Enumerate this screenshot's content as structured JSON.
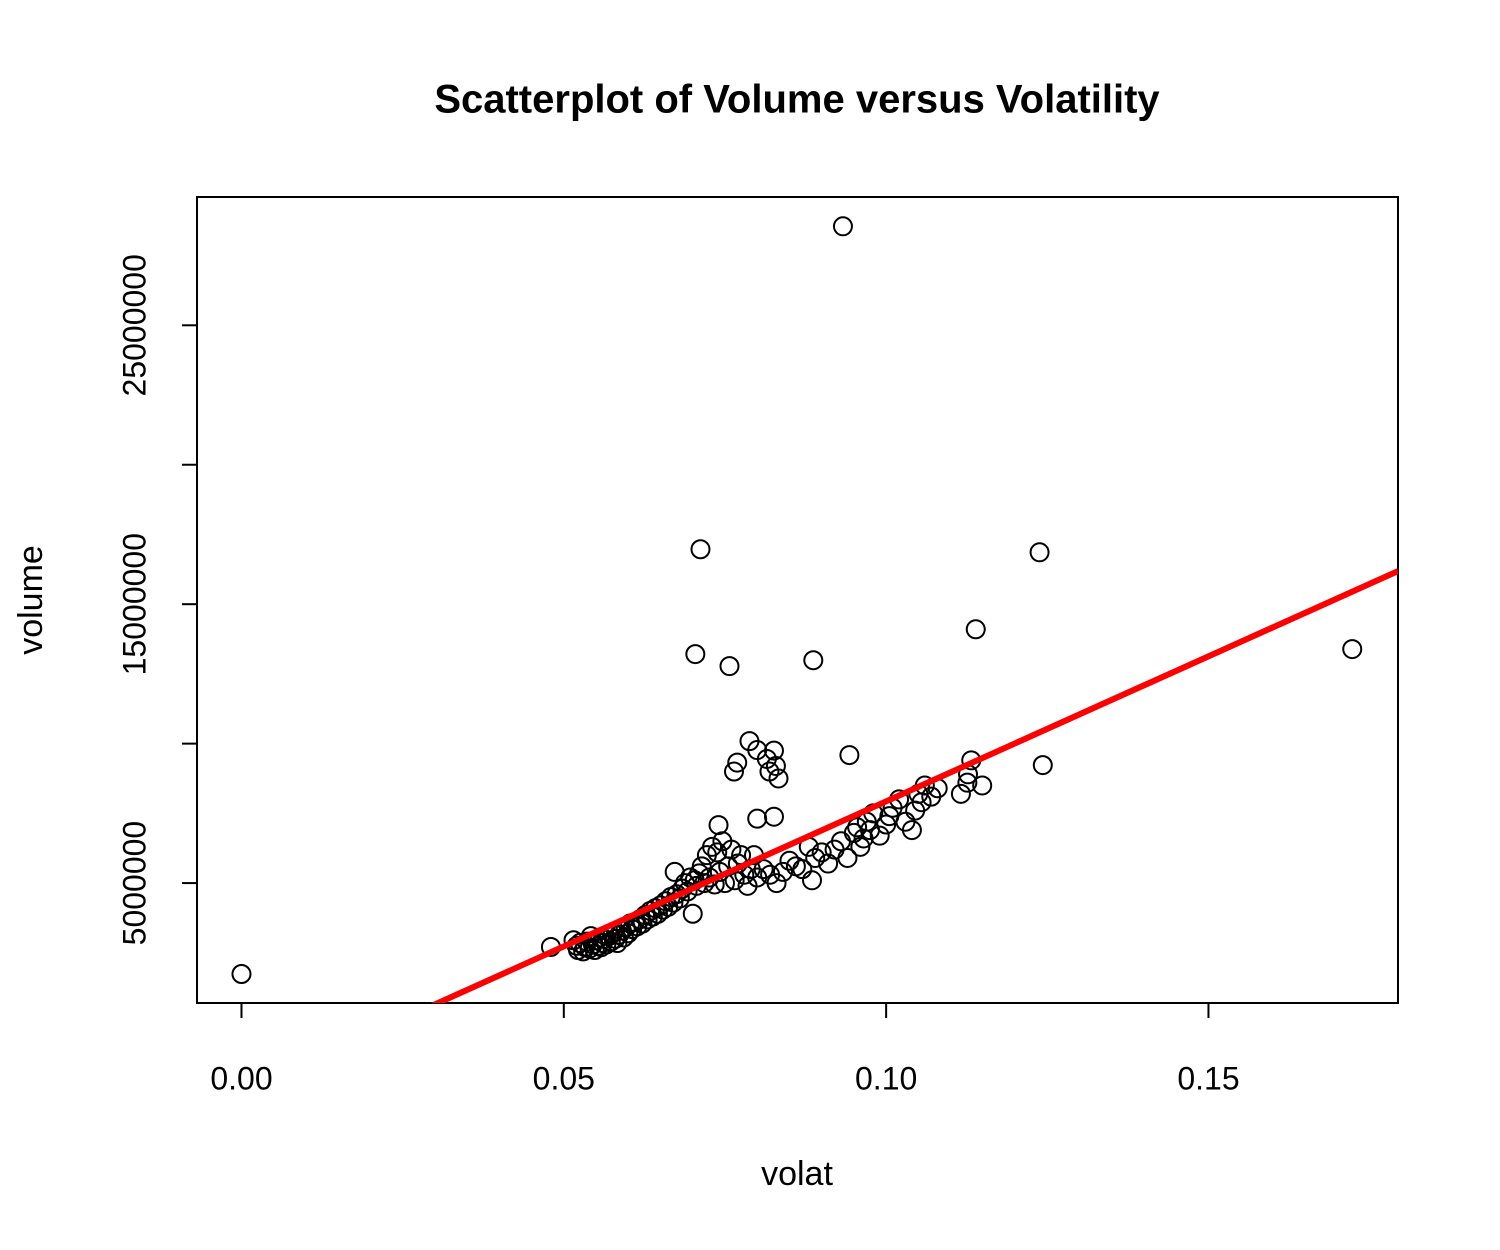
{
  "chart_data": {
    "type": "scatter",
    "title": "Scatterplot of Volume versus Volatility",
    "x_label": "volat",
    "y_label": "volume",
    "xlim": [
      -0.0069,
      0.1794
    ],
    "ylim": [
      700000,
      29600000
    ],
    "xticks": [
      {
        "value": 0,
        "label": "0.00"
      },
      0.05,
      {
        "value": 0.1,
        "label": "0.10"
      },
      0.15
    ],
    "yticks": [
      5000000,
      {
        "value": 10000000,
        "label": null
      },
      15000000,
      {
        "value": 20000000,
        "label": null
      },
      25000000
    ],
    "color": "#000000",
    "x": [
      0.0933,
      0.0712,
      0.1238,
      0.1139,
      0.1723,
      0.0704,
      0.0757,
      0.0887,
      0,
      0.0943,
      0.1243,
      0.0788,
      0.08,
      0.0826,
      0.0815,
      0.0829,
      0.0769,
      0.0764,
      0.0819,
      0.0833,
      0.08,
      0.0826,
      0.074,
      0.1126,
      0.1132,
      0.1127,
      0.1149,
      0.1116,
      0.048,
      0.0515,
      0.052,
      0.0522,
      0.0525,
      0.053,
      0.0533,
      0.0536,
      0.054,
      0.0542,
      0.0545,
      0.0548,
      0.055,
      0.0553,
      0.0556,
      0.0558,
      0.056,
      0.0563,
      0.0566,
      0.057,
      0.0573,
      0.0576,
      0.058,
      0.0583,
      0.0586,
      0.059,
      0.0593,
      0.0596,
      0.06,
      0.0603,
      0.0606,
      0.061,
      0.0614,
      0.0618,
      0.0622,
      0.0626,
      0.063,
      0.0634,
      0.0638,
      0.0642,
      0.0646,
      0.065,
      0.0654,
      0.0658,
      0.0662,
      0.0666,
      0.067,
      0.0672,
      0.0675,
      0.068,
      0.0684,
      0.0688,
      0.0692,
      0.0696,
      0.07,
      0.0703,
      0.0706,
      0.071,
      0.0714,
      0.0718,
      0.0722,
      0.0726,
      0.073,
      0.0734,
      0.0738,
      0.0742,
      0.0746,
      0.075,
      0.0755,
      0.076,
      0.0765,
      0.077,
      0.0775,
      0.078,
      0.0785,
      0.079,
      0.0795,
      0.08,
      0.081,
      0.082,
      0.083,
      0.084,
      0.085,
      0.086,
      0.087,
      0.088,
      0.0885,
      0.089,
      0.09,
      0.091,
      0.092,
      0.093,
      0.094,
      0.095,
      0.0955,
      0.096,
      0.0965,
      0.097,
      0.0975,
      0.098,
      0.099,
      0.1,
      0.1005,
      0.101,
      0.102,
      0.103,
      0.104,
      0.1045,
      0.105,
      0.1055,
      0.106,
      0.107,
      0.108
    ],
    "values": [
      28550000,
      16970000,
      16860000,
      14100000,
      13390000,
      13210000,
      12780000,
      12990000,
      1740000,
      9590000,
      9230000,
      10090000,
      9770000,
      9750000,
      9450000,
      9200000,
      9320000,
      9000000,
      9000000,
      8750000,
      7310000,
      7380000,
      7080000,
      8600000,
      9400000,
      8900000,
      8500000,
      8200000,
      2710000,
      2950000,
      2750000,
      2600000,
      2850000,
      2550000,
      2700000,
      2900000,
      2650000,
      3100000,
      2800000,
      2600000,
      2950000,
      2750000,
      3050000,
      2700000,
      2850000,
      3000000,
      2800000,
      3100000,
      2900000,
      3200000,
      3000000,
      2850000,
      3150000,
      3300000,
      3050000,
      3400000,
      3200000,
      3550000,
      3350000,
      3600000,
      3450000,
      3700000,
      3550000,
      3850000,
      3700000,
      4000000,
      3800000,
      4100000,
      3900000,
      4200000,
      4050000,
      4350000,
      4150000,
      4500000,
      4300000,
      5400000,
      4600000,
      4450000,
      4800000,
      5000000,
      4700000,
      5200000,
      3900000,
      5100000,
      4900000,
      5350000,
      5600000,
      5000000,
      6000000,
      5200000,
      6300000,
      4950000,
      6100000,
      5400000,
      6500000,
      5000000,
      5600000,
      6200000,
      5100000,
      5700000,
      6000000,
      5300000,
      4900000,
      5500000,
      6000000,
      5200000,
      5500000,
      5300000,
      5000000,
      5400000,
      5800000,
      5600000,
      5500000,
      6300000,
      5100000,
      5900000,
      6100000,
      5700000,
      6200000,
      6500000,
      5900000,
      6800000,
      7000000,
      6300000,
      6600000,
      7200000,
      6900000,
      7500000,
      6700000,
      7100000,
      7400000,
      7700000,
      8000000,
      7200000,
      6900000,
      7600000,
      8200000,
      7900000,
      8500000,
      8100000,
      8400000
    ],
    "abline": {
      "intercept": -2470000,
      "slope": 104000000,
      "color": "#ff0000"
    }
  }
}
